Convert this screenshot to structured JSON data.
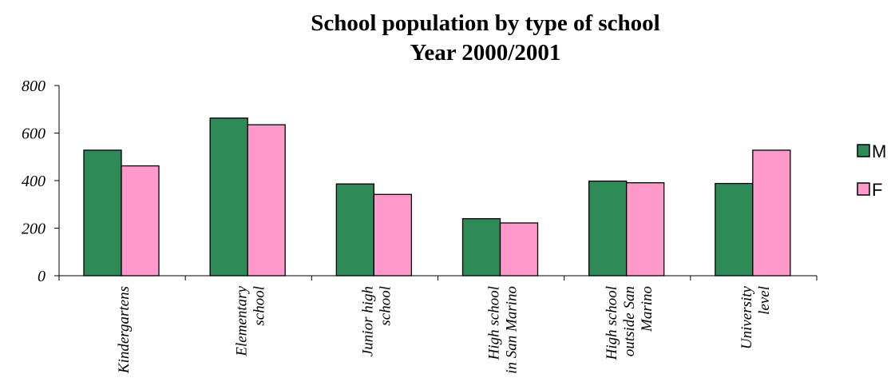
{
  "chart_data": {
    "type": "bar",
    "title": "School population by type of school",
    "subtitle": "Year 2000/2001",
    "categories": [
      [
        "Kindergartens"
      ],
      [
        "Elementary",
        "school"
      ],
      [
        "Junior high",
        "school"
      ],
      [
        "High school",
        "in San Marino"
      ],
      [
        "High school",
        "outside San",
        "Marino"
      ],
      [
        "University",
        "level"
      ]
    ],
    "series": [
      {
        "name": "M",
        "color": "#2e8b57",
        "values": [
          528,
          663,
          386,
          240,
          398,
          388
        ]
      },
      {
        "name": "F",
        "color": "#ff99cc",
        "values": [
          462,
          635,
          342,
          222,
          391,
          528
        ]
      }
    ],
    "ylim": [
      0,
      800
    ],
    "yticks": [
      0,
      200,
      400,
      600,
      800
    ],
    "grid": false,
    "legend": "right"
  }
}
